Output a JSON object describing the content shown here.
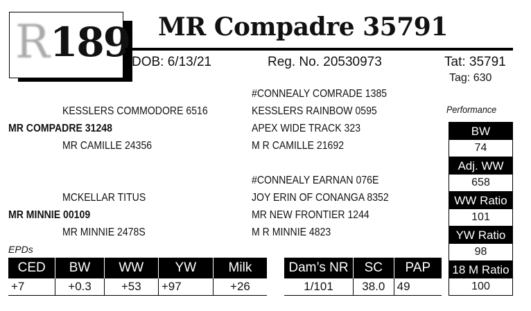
{
  "logo": {
    "letter": "R",
    "lot_number": "189"
  },
  "title": "MR Compadre 35791",
  "dob": "DOB: 6/13/21",
  "reg_no": "Reg. No. 20530973",
  "tattoo": "Tat: 35791",
  "tag": "Tag: 630",
  "pedigree": {
    "sire": "MR COMPADRE 31248",
    "sire_sire": "KESSLERS COMMODORE 6516",
    "sire_dam": "MR CAMILLE 24356",
    "sire_sire_sire": "#CONNEALY COMRADE 1385",
    "sire_sire_dam": "KESSLERS RAINBOW 0595",
    "sire_dam_sire": "APEX WIDE TRACK 323",
    "sire_dam_dam": "M R CAMILLE 21692",
    "dam": "MR MINNIE 00109",
    "dam_sire": "MCKELLAR TITUS",
    "dam_dam": "MR MINNIE 2478S",
    "dam_sire_sire": "#CONNEALY EARNAN 076E",
    "dam_sire_dam": "JOY ERIN OF CONANGA 8352",
    "dam_dam_sire": "MR NEW FRONTIER 1244",
    "dam_dam_dam": "M R MINNIE 4823"
  },
  "performance": {
    "label": "Performance",
    "items": [
      {
        "label": "BW",
        "value": "74"
      },
      {
        "label": "Adj. WW",
        "value": "658"
      },
      {
        "label": "WW Ratio",
        "value": "101"
      },
      {
        "label": "YW Ratio",
        "value": "98"
      },
      {
        "label": "18 M Ratio",
        "value": "100"
      }
    ]
  },
  "epds": {
    "label": "EPDs",
    "headers": [
      "CED",
      "BW",
      "WW",
      "YW",
      "Milk"
    ],
    "values": [
      "+7",
      "+0.3",
      "+53",
      "+97",
      "+26"
    ]
  },
  "dam_stats": {
    "headers": [
      "Dam’s NR",
      "SC",
      "PAP"
    ],
    "values": [
      "1/101",
      "38.0",
      "49"
    ]
  }
}
